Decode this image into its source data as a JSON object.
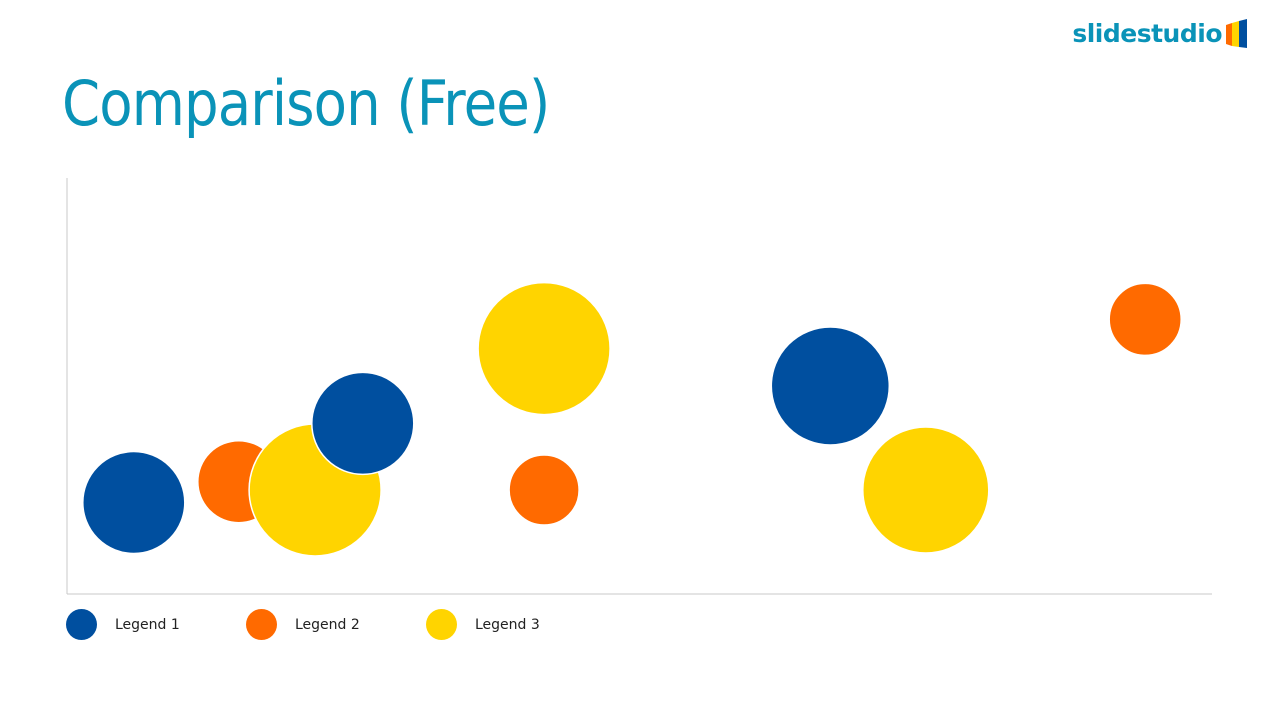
{
  "slide": {
    "title": "Comparison (Free)"
  },
  "logo": {
    "text": "slidestudio",
    "colors": {
      "text": "#0a93b8",
      "mark_orange": "#ff6a00",
      "mark_yellow": "#ffd400",
      "mark_blue": "#004f9f"
    }
  },
  "chart_data": {
    "type": "bubble",
    "title": "",
    "xlabel": "",
    "ylabel": "",
    "grid": false,
    "axes": "left and bottom lines only, no tick labels",
    "legend_position": "bottom-left",
    "xlim": [
      0,
      12
    ],
    "ylim": [
      0,
      10
    ],
    "series": [
      {
        "name": "Legend 1",
        "color": "#004f9f",
        "points": [
          {
            "x": 0.7,
            "y": 2.2,
            "size": 51
          },
          {
            "x": 3.1,
            "y": 4.1,
            "size": 51
          },
          {
            "x": 8.0,
            "y": 5.0,
            "size": 59
          }
        ]
      },
      {
        "name": "Legend 2",
        "color": "#ff6a00",
        "points": [
          {
            "x": 1.8,
            "y": 2.7,
            "size": 41
          },
          {
            "x": 5.0,
            "y": 2.5,
            "size": 35
          },
          {
            "x": 11.3,
            "y": 6.6,
            "size": 36
          }
        ]
      },
      {
        "name": "Legend 3",
        "color": "#ffd400",
        "points": [
          {
            "x": 2.6,
            "y": 2.5,
            "size": 66
          },
          {
            "x": 5.0,
            "y": 5.9,
            "size": 66
          },
          {
            "x": 9.0,
            "y": 2.5,
            "size": 63
          }
        ]
      }
    ],
    "draw_order": [
      [
        0,
        0
      ],
      [
        1,
        0
      ],
      [
        2,
        0
      ],
      [
        0,
        1
      ],
      [
        2,
        1
      ],
      [
        1,
        1
      ],
      [
        0,
        2
      ],
      [
        2,
        2
      ],
      [
        1,
        2
      ]
    ]
  }
}
